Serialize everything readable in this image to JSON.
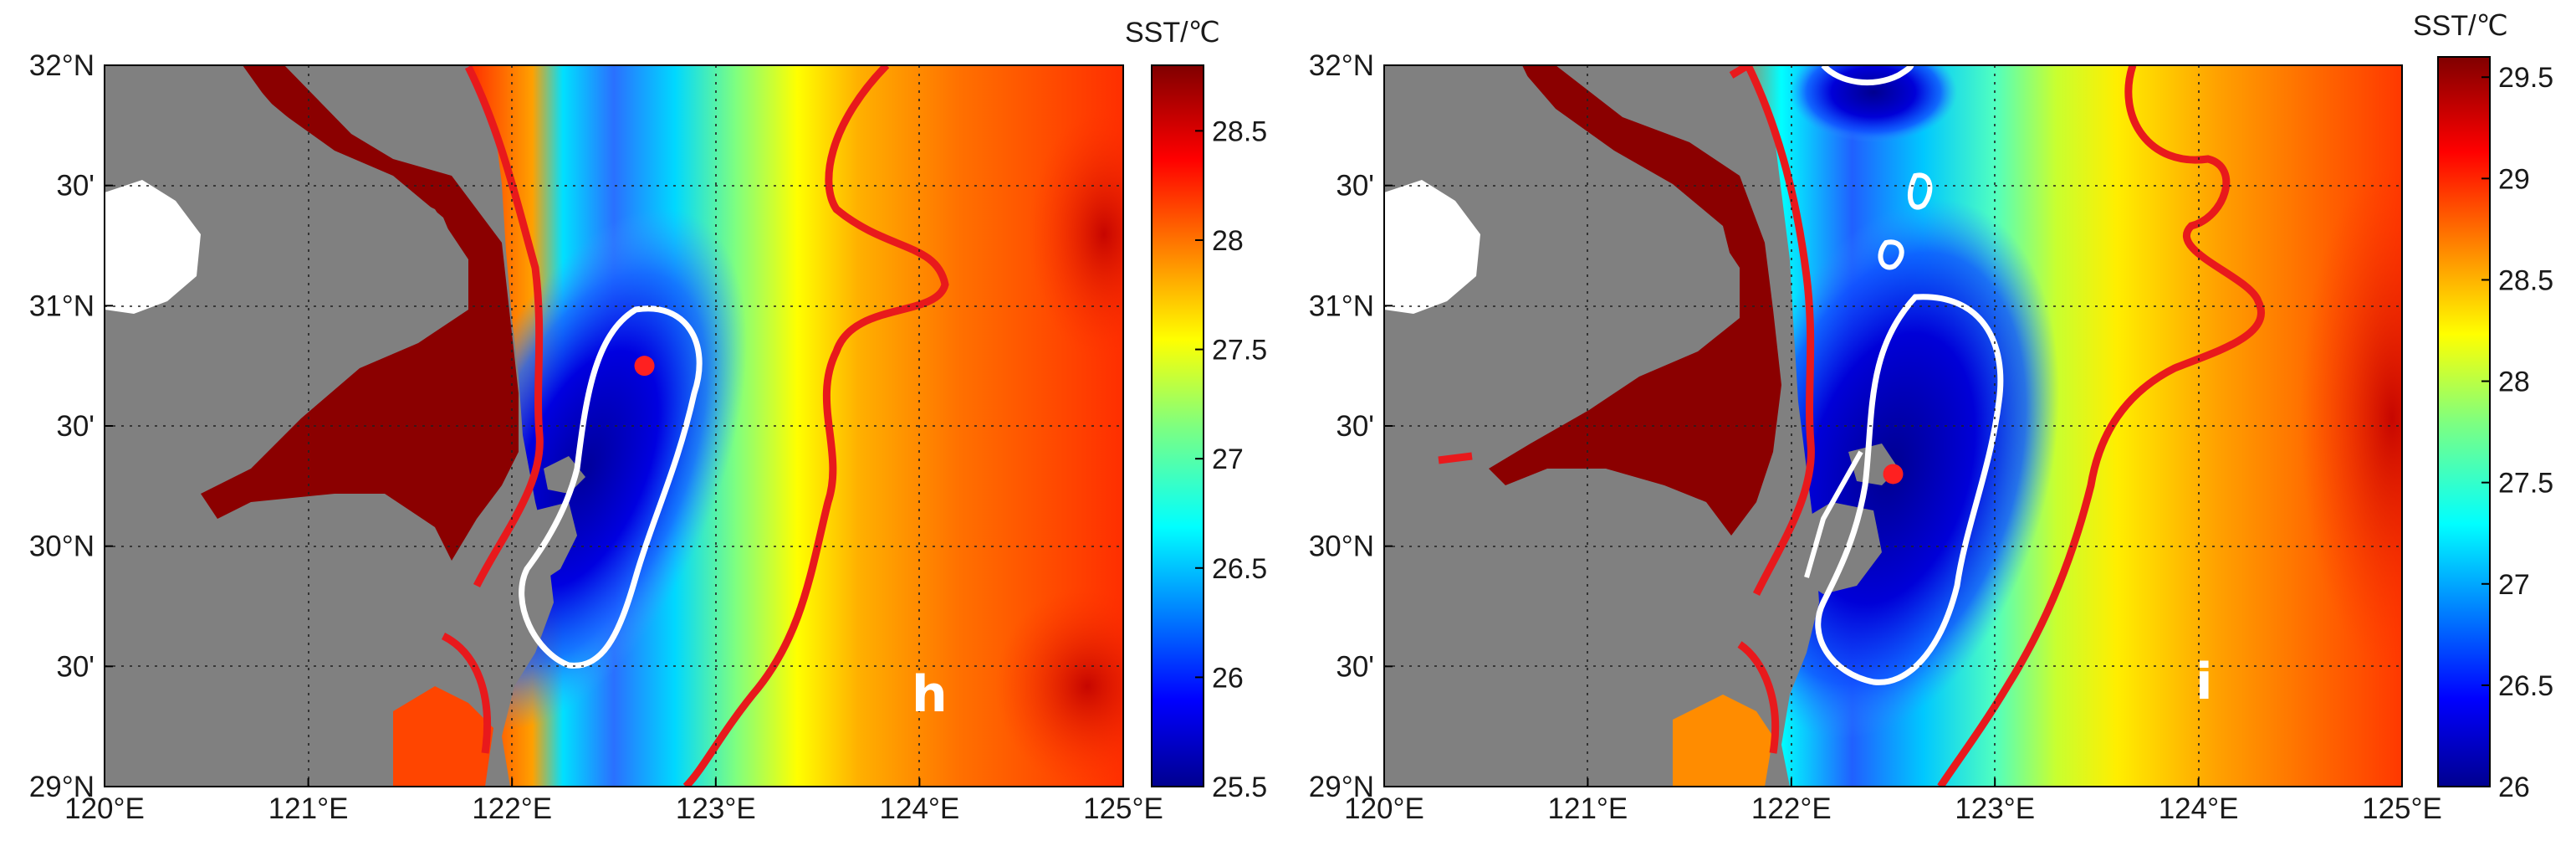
{
  "figure": {
    "panels": [
      {
        "label": "h",
        "lon_ticks": [
          "120°E",
          "121°E",
          "122°E",
          "123°E",
          "124°E",
          "125°E"
        ],
        "lat_ticks": [
          "29°N",
          "30'",
          "30°N",
          "30'",
          "31°N",
          "30'",
          "32°N"
        ],
        "colorbar": {
          "title": "SST/℃",
          "ticks": [
            "25.5",
            "26",
            "26.5",
            "27",
            "27.5",
            "28",
            "28.5"
          ],
          "range": [
            25.5,
            28.8
          ]
        },
        "marker": {
          "lon": 122.65,
          "lat": 30.75,
          "color": "#ff2020"
        }
      },
      {
        "label": "i",
        "lon_ticks": [
          "120°E",
          "121°E",
          "122°E",
          "123°E",
          "124°E",
          "125°E"
        ],
        "lat_ticks": [
          "29°N",
          "30'",
          "30°N",
          "30'",
          "31°N",
          "30'",
          "32°N"
        ],
        "colorbar": {
          "title": "SST/℃",
          "ticks": [
            "26",
            "26.5",
            "27",
            "27.5",
            "28",
            "28.5",
            "29",
            "29.5"
          ],
          "range": [
            26,
            29.6
          ]
        },
        "marker": {
          "lon": 122.5,
          "lat": 30.3,
          "color": "#ff2020"
        }
      }
    ],
    "colors": {
      "land": "#808080",
      "contour_red": "#e8191c",
      "contour_white": "#ffffff",
      "grid": "#202020"
    }
  }
}
